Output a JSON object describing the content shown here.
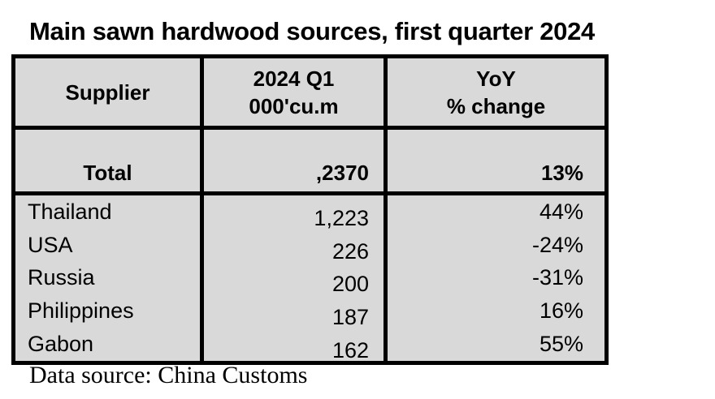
{
  "page": {
    "title": "Main sawn hardwood sources, first quarter 2024",
    "footer": "Data source: China Customs"
  },
  "header": {
    "supplier_label": "Supplier",
    "volume_line1": "2024 Q1",
    "volume_line2": "000'cu.m",
    "yoy_line1": "YoY",
    "yoy_line2": "% change"
  },
  "colors": {
    "cell_background": "#d9d9d9",
    "border": "#000000",
    "text": "#000000",
    "page_background": "#ffffff"
  },
  "chart_data": {
    "type": "table",
    "title": "Main sawn hardwood sources, first quarter 2024",
    "columns": [
      "Supplier",
      "2024 Q1 000'cu.m",
      "YoY % change"
    ],
    "rows": [
      [
        "Total",
        ",2370",
        "13%"
      ],
      [
        "Thailand",
        "1,223",
        "44%"
      ],
      [
        "USA",
        "226",
        "-24%"
      ],
      [
        "Russia",
        "200",
        "-31%"
      ],
      [
        "Philippines",
        "187",
        "16%"
      ],
      [
        "Gabon",
        "162",
        "55%"
      ]
    ],
    "suppliers": [
      "Thailand",
      "USA",
      "Russia",
      "Philippines",
      "Gabon"
    ],
    "volumes_000cum": [
      1223,
      226,
      200,
      187,
      162
    ],
    "yoy_pct_change": [
      44,
      -24,
      -31,
      16,
      55
    ],
    "total_volume_as_shown": ",2370",
    "total_yoy_pct": 13,
    "note": "Data source: China Customs",
    "layout": "grid-lined table, gray cell background, bold header and total row, no rules between body rows"
  }
}
